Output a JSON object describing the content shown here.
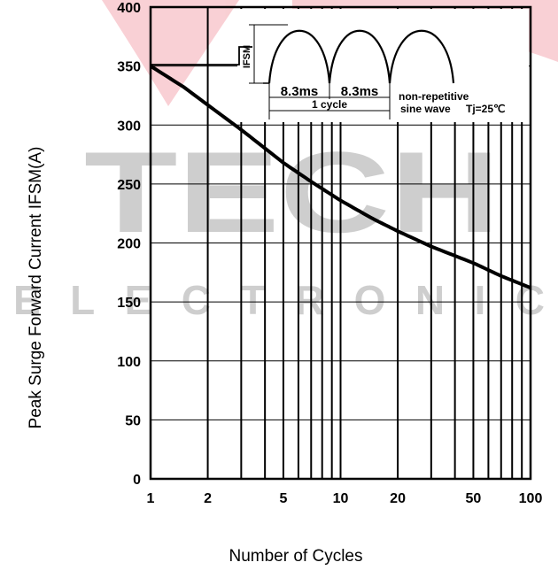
{
  "chart_data": {
    "type": "line",
    "xlabel": "Number of Cycles",
    "ylabel": "Peak Surge Forward Current IFSM(A)",
    "x_scale": "log",
    "xlim": [
      1,
      100
    ],
    "ylim": [
      0,
      400
    ],
    "x_ticks": [
      1,
      2,
      5,
      10,
      20,
      50,
      100
    ],
    "y_ticks": [
      0,
      50,
      100,
      150,
      200,
      250,
      300,
      350,
      400
    ],
    "grid": true,
    "series": [
      {
        "x": [
          1,
          1.5,
          2,
          3,
          5,
          7,
          10,
          15,
          20,
          30,
          50,
          70,
          100
        ],
        "y": [
          350,
          332,
          317,
          296,
          268,
          252,
          236,
          220,
          210,
          197,
          183,
          172,
          162
        ]
      }
    ],
    "inset": {
      "ifsm_label": "IFSM",
      "period_left": "8.3ms",
      "period_right": "8.3ms",
      "cycle_label": "1 cycle",
      "note_line1": "non-repetitive",
      "note_line2": "sine wave",
      "temp_label": "Tj=25℃"
    },
    "watermark": {
      "word1": "TECH",
      "word2": "ELECTRONIC",
      "colors": [
        "#e0162b",
        "#111111"
      ]
    }
  }
}
